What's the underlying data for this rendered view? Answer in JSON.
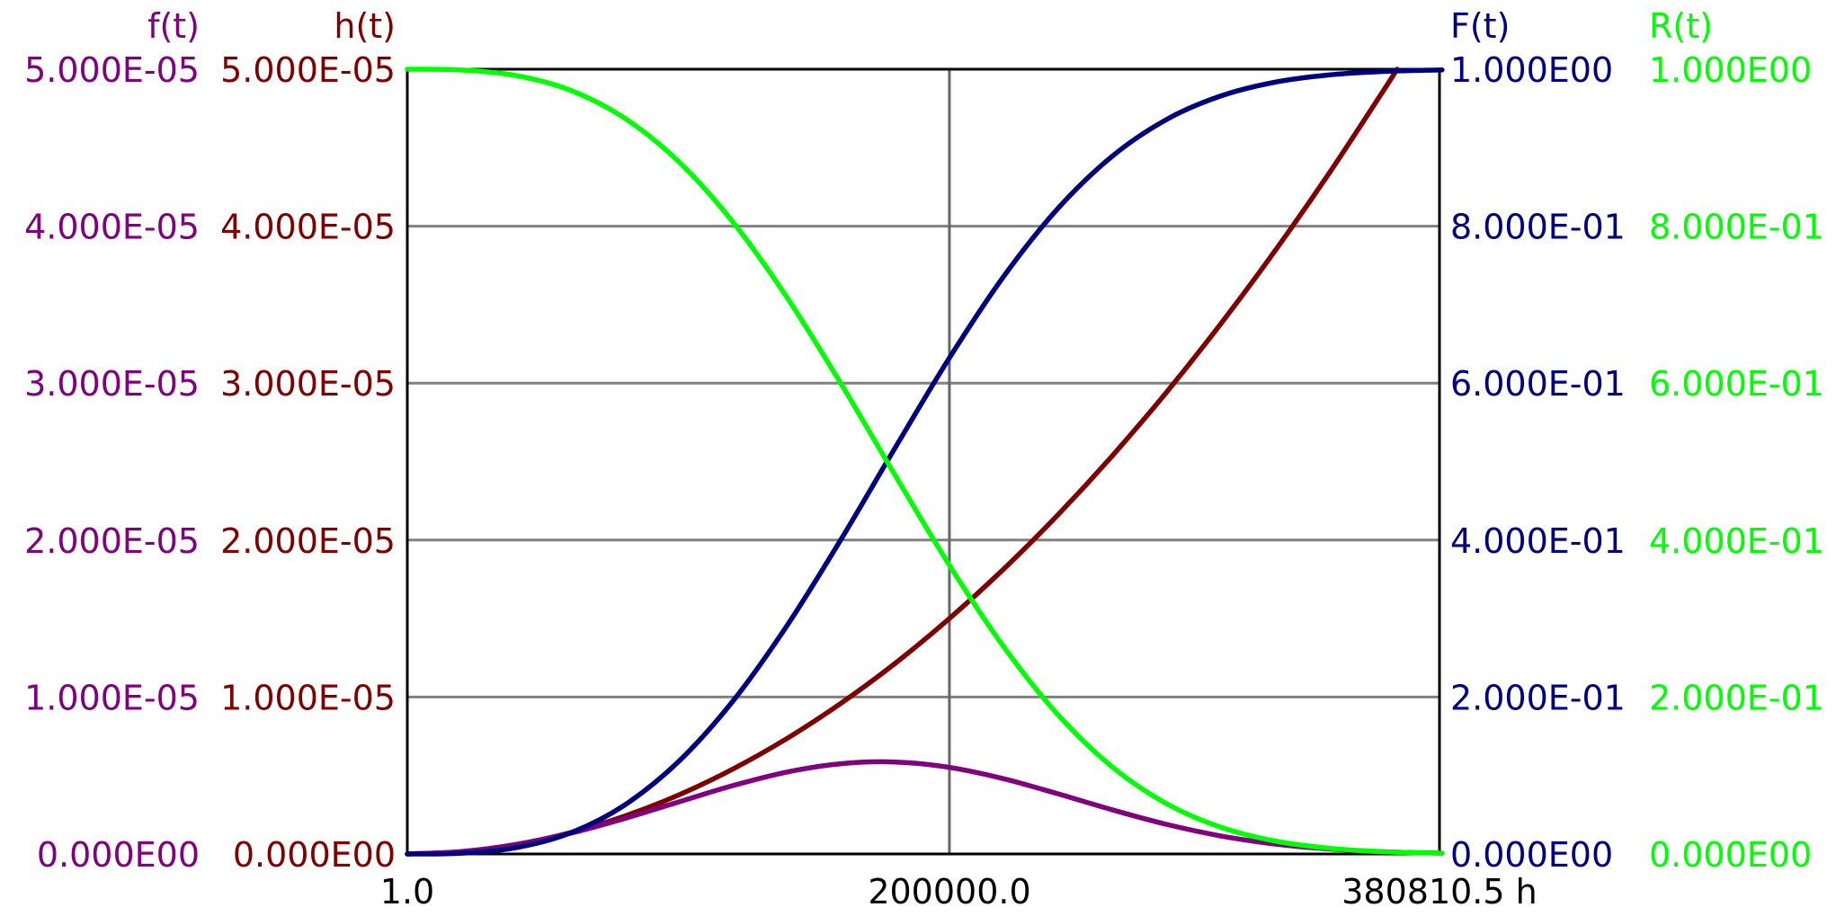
{
  "chart_data": {
    "type": "line",
    "title": "",
    "x_unit": "h",
    "xlim": [
      1.0,
      380810.5
    ],
    "x_tick_labels": [
      "1.0",
      "200000.0",
      "380810.5 h"
    ],
    "x_ticks": [
      1.0,
      200000.0,
      380810.5
    ],
    "grid": true,
    "axes": [
      {
        "id": "f",
        "side": "left-outer",
        "label": "f(t)",
        "color": "#800080",
        "ylim": [
          0,
          5e-05
        ],
        "tick_labels": [
          "0.000E00",
          "1.000E-05",
          "2.000E-05",
          "3.000E-05",
          "4.000E-05",
          "5.000E-05"
        ]
      },
      {
        "id": "h",
        "side": "left-inner",
        "label": "h(t)",
        "color": "#800000",
        "ylim": [
          0,
          5e-05
        ],
        "tick_labels": [
          "0.000E00",
          "1.000E-05",
          "2.000E-05",
          "3.000E-05",
          "4.000E-05",
          "5.000E-05"
        ]
      },
      {
        "id": "F",
        "side": "right-inner",
        "label": "F(t)",
        "color": "#000080",
        "ylim": [
          0,
          1.0
        ],
        "tick_labels": [
          "0.000E00",
          "2.000E-01",
          "4.000E-01",
          "6.000E-01",
          "8.000E-01",
          "1.000E00"
        ]
      },
      {
        "id": "R",
        "side": "right-outer",
        "label": "R(t)",
        "color": "#00FF00",
        "ylim": [
          0,
          1.0
        ],
        "tick_labels": [
          "0.000E00",
          "2.000E-01",
          "4.000E-01",
          "6.000E-01",
          "8.000E-01",
          "1.000E00"
        ]
      }
    ],
    "series": [
      {
        "name": "h(t)",
        "axis": "h",
        "color": "#800000",
        "x": [
          1,
          20000,
          40000,
          60000,
          80000,
          100000,
          120000,
          140000,
          160000,
          180000,
          200000,
          220000,
          240000,
          260000,
          280000,
          300000,
          320000,
          340000,
          360000,
          365148
        ],
        "y": [
          0,
          1.5e-07,
          6e-07,
          1.35e-06,
          2.4e-06,
          3.75e-06,
          5.4e-06,
          7.35e-06,
          9.6e-06,
          1.215e-05,
          1.5e-05,
          1.815e-05,
          2.16e-05,
          2.535e-05,
          2.94e-05,
          3.375e-05,
          3.84e-05,
          4.335e-05,
          4.86e-05,
          5e-05
        ]
      },
      {
        "name": "f(t)",
        "axis": "f",
        "color": "#800080",
        "x": [
          1,
          20000,
          40000,
          60000,
          80000,
          100000,
          120000,
          140000,
          160000,
          180000,
          200000,
          220000,
          240000,
          260000,
          280000,
          300000,
          320000,
          340000,
          360000,
          380000,
          380810.5
        ],
        "y": [
          0,
          1.5e-07,
          5.95e-07,
          1.314e-06,
          2.251e-06,
          3.309e-06,
          4.351e-06,
          5.216e-06,
          5.753e-06,
          5.861e-06,
          5.518e-06,
          4.795e-06,
          3.836e-06,
          2.816e-06,
          1.89e-06,
          1.154e-06,
          6.37e-07,
          3.19e-07,
          1.42e-07,
          5.7e-08,
          5.5e-08
        ]
      },
      {
        "name": "F(t)",
        "axis": "F",
        "color": "#000080",
        "x": [
          1,
          20000,
          40000,
          60000,
          80000,
          100000,
          120000,
          140000,
          160000,
          180000,
          200000,
          220000,
          240000,
          260000,
          280000,
          300000,
          320000,
          340000,
          360000,
          380000,
          380810.5
        ],
        "y": [
          0,
          0.001,
          0.008,
          0.0266,
          0.062,
          0.1175,
          0.1943,
          0.2904,
          0.4007,
          0.5176,
          0.6321,
          0.7358,
          0.8224,
          0.8889,
          0.9357,
          0.9658,
          0.9834,
          0.9927,
          0.9971,
          0.999,
          0.999
        ]
      },
      {
        "name": "R(t)",
        "axis": "R",
        "color": "#00FF00",
        "x": [
          1,
          20000,
          40000,
          60000,
          80000,
          100000,
          120000,
          140000,
          160000,
          180000,
          200000,
          220000,
          240000,
          260000,
          280000,
          300000,
          320000,
          340000,
          360000,
          380000,
          380810.5
        ],
        "y": [
          1,
          0.999,
          0.992,
          0.9734,
          0.938,
          0.8825,
          0.8057,
          0.7096,
          0.5993,
          0.4824,
          0.3679,
          0.2642,
          0.1776,
          0.1111,
          0.0643,
          0.0342,
          0.0166,
          0.0073,
          0.0029,
          0.001,
          0.001
        ]
      }
    ],
    "colors": {
      "frame": "#000000",
      "grid_h": "#808080",
      "grid_v": "#666666",
      "x_labels": "#000000"
    }
  }
}
